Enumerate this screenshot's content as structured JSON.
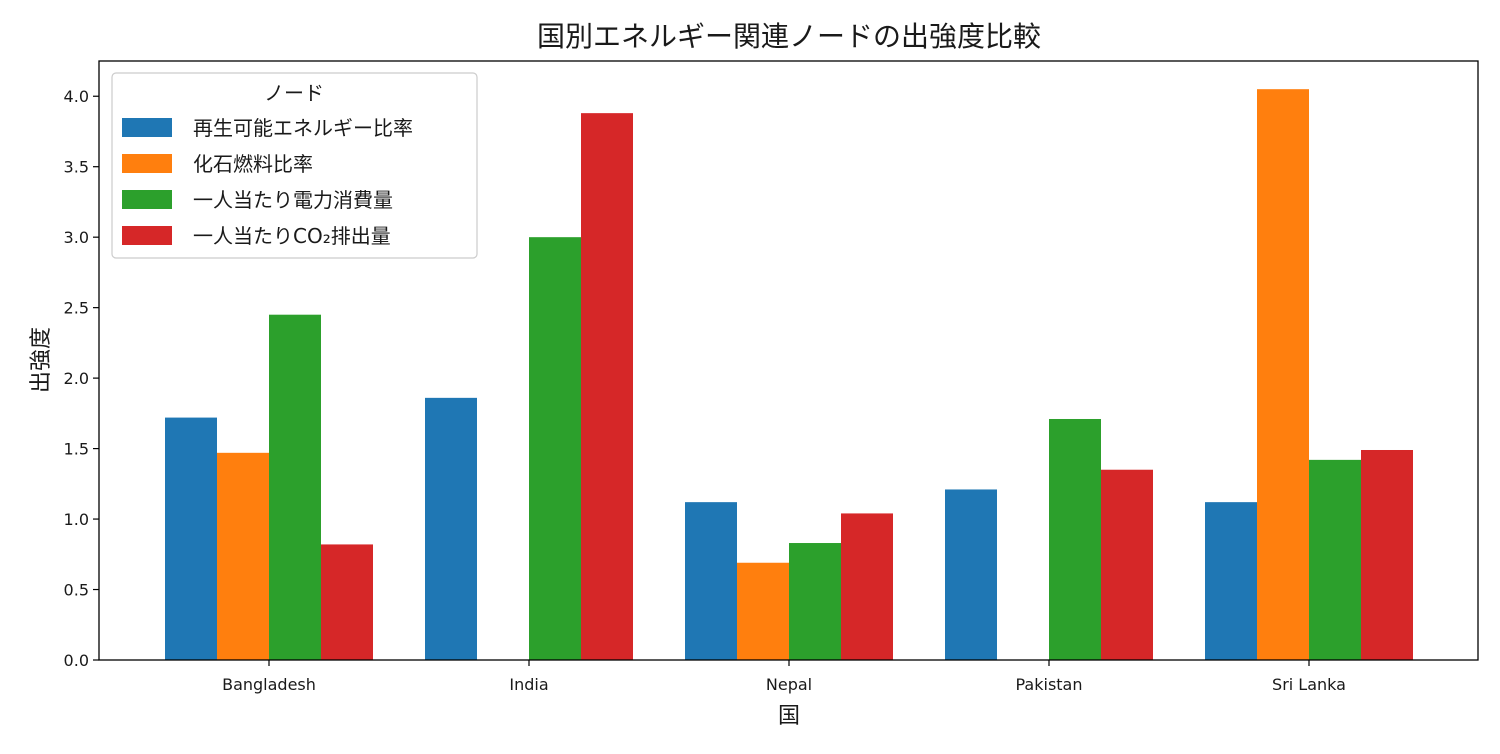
{
  "chart_data": {
    "type": "bar",
    "title": "国別エネルギー関連ノードの出強度比較",
    "xlabel": "国",
    "ylabel": "出強度",
    "categories": [
      "Bangladesh",
      "India",
      "Nepal",
      "Pakistan",
      "Sri Lanka"
    ],
    "ylim": [
      0,
      4.25
    ],
    "yticks": [
      "0.0",
      "0.5",
      "1.0",
      "1.5",
      "2.0",
      "2.5",
      "3.0",
      "3.5",
      "4.0"
    ],
    "grid": false,
    "legend": {
      "title": "ノード",
      "placement": "top-left"
    },
    "series": [
      {
        "name": "再生可能エネルギー比率",
        "color": "#1f77b4",
        "values": [
          1.72,
          1.86,
          1.12,
          1.21,
          1.12
        ]
      },
      {
        "name": "化石燃料比率",
        "color": "#ff7f0e",
        "values": [
          1.47,
          0,
          0.69,
          0,
          4.05
        ]
      },
      {
        "name": "一人当たり電力消費量",
        "color": "#2ca02c",
        "values": [
          2.45,
          3.0,
          0.83,
          1.71,
          1.42
        ]
      },
      {
        "name": "一人当たりCO₂排出量",
        "color": "#d62728",
        "values": [
          0.82,
          3.88,
          1.04,
          1.35,
          1.49
        ]
      }
    ]
  }
}
